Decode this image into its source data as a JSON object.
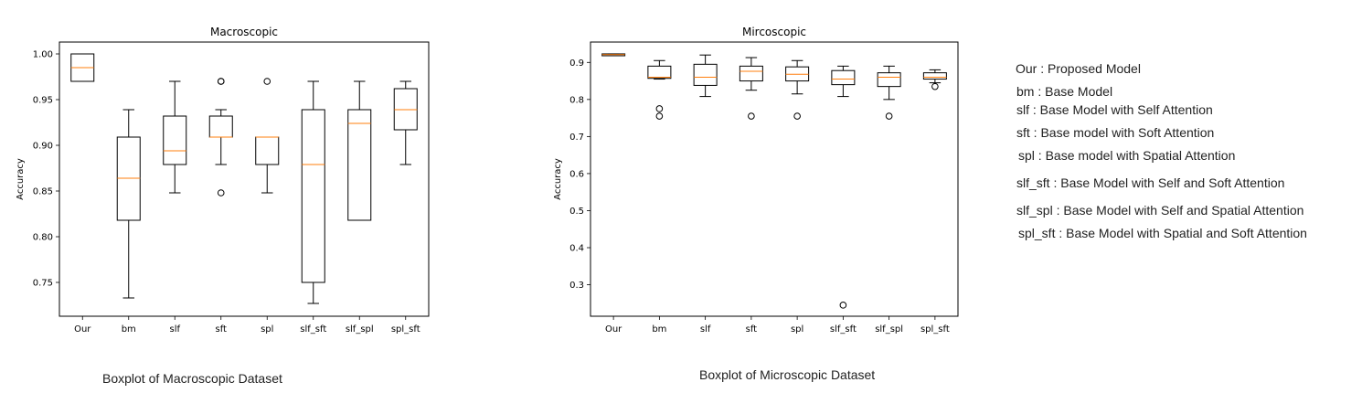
{
  "chart_data": [
    {
      "type": "boxplot",
      "title": "Macroscopic",
      "ylabel": "Accuracy",
      "xlabel": "",
      "ylim": [
        0.713,
        1.013
      ],
      "yticks": [
        0.75,
        0.8,
        0.85,
        0.9,
        0.95,
        1.0
      ],
      "ytick_labels": [
        "0.75",
        "0.80",
        "0.85",
        "0.90",
        "0.95",
        "1.00"
      ],
      "categories": [
        "Our",
        "bm",
        "slf",
        "sft",
        "spl",
        "slf_sft",
        "slf_spl",
        "spl_sft"
      ],
      "boxes": [
        {
          "whislo": 0.97,
          "q1": 0.97,
          "med": 0.985,
          "q3": 1.0,
          "whishi": 1.0,
          "fliers": []
        },
        {
          "whislo": 0.733,
          "q1": 0.818,
          "med": 0.864,
          "q3": 0.909,
          "whishi": 0.939,
          "fliers": []
        },
        {
          "whislo": 0.848,
          "q1": 0.879,
          "med": 0.894,
          "q3": 0.932,
          "whishi": 0.97,
          "fliers": []
        },
        {
          "whislo": 0.879,
          "q1": 0.909,
          "med": 0.909,
          "q3": 0.932,
          "whishi": 0.939,
          "fliers": [
            0.848,
            0.97,
            0.97
          ]
        },
        {
          "whislo": 0.848,
          "q1": 0.879,
          "med": 0.909,
          "q3": 0.909,
          "whishi": 0.909,
          "fliers": [
            0.97
          ]
        },
        {
          "whislo": 0.727,
          "q1": 0.75,
          "med": 0.879,
          "q3": 0.939,
          "whishi": 0.97,
          "fliers": []
        },
        {
          "whislo": 0.818,
          "q1": 0.818,
          "med": 0.924,
          "q3": 0.939,
          "whishi": 0.97,
          "fliers": []
        },
        {
          "whislo": 0.879,
          "q1": 0.917,
          "med": 0.939,
          "q3": 0.962,
          "whishi": 0.97,
          "fliers": []
        }
      ],
      "caption": "Boxplot of Macroscopic Dataset"
    },
    {
      "type": "boxplot",
      "title": "Mircoscopic",
      "ylabel": "Accuracy",
      "xlabel": "",
      "ylim": [
        0.215,
        0.955
      ],
      "yticks": [
        0.3,
        0.4,
        0.5,
        0.6,
        0.7,
        0.8,
        0.9
      ],
      "ytick_labels": [
        "0.3",
        "0.4",
        "0.5",
        "0.6",
        "0.7",
        "0.8",
        "0.9"
      ],
      "categories": [
        "Our",
        "bm",
        "slf",
        "sft",
        "spl",
        "slf_sft",
        "slf_spl",
        "spl_sft"
      ],
      "boxes": [
        {
          "whislo": 0.918,
          "q1": 0.918,
          "med": 0.921,
          "q3": 0.923,
          "whishi": 0.923,
          "fliers": []
        },
        {
          "whislo": 0.855,
          "q1": 0.857,
          "med": 0.86,
          "q3": 0.89,
          "whishi": 0.905,
          "fliers": [
            0.775,
            0.755
          ]
        },
        {
          "whislo": 0.808,
          "q1": 0.838,
          "med": 0.86,
          "q3": 0.895,
          "whishi": 0.92,
          "fliers": []
        },
        {
          "whislo": 0.825,
          "q1": 0.85,
          "med": 0.876,
          "q3": 0.89,
          "whishi": 0.913,
          "fliers": [
            0.755
          ]
        },
        {
          "whislo": 0.815,
          "q1": 0.85,
          "med": 0.868,
          "q3": 0.888,
          "whishi": 0.905,
          "fliers": [
            0.755
          ]
        },
        {
          "whislo": 0.808,
          "q1": 0.84,
          "med": 0.855,
          "q3": 0.878,
          "whishi": 0.89,
          "fliers": [
            0.245
          ]
        },
        {
          "whislo": 0.8,
          "q1": 0.835,
          "med": 0.86,
          "q3": 0.872,
          "whishi": 0.89,
          "fliers": [
            0.755
          ]
        },
        {
          "whislo": 0.845,
          "q1": 0.855,
          "med": 0.86,
          "q3": 0.872,
          "whishi": 0.88,
          "fliers": [
            0.835
          ]
        }
      ],
      "caption": "Boxplot of Microscopic Dataset"
    }
  ],
  "legend": [
    "Our : Proposed Model",
    "bm : Base Model",
    "slf : Base Model with Self Attention",
    "sft : Base model with Soft Attention",
    "spl : Base model with Spatial Attention",
    "slf_sft : Base Model with Self and Soft Attention",
    "slf_spl : Base Model with Self and Spatial Attention",
    "spl_sft : Base Model with Spatial and Soft Attention"
  ],
  "colors": {
    "box_edge": "#000000",
    "median": "#ff7f0e",
    "flier_edge": "#000000"
  }
}
